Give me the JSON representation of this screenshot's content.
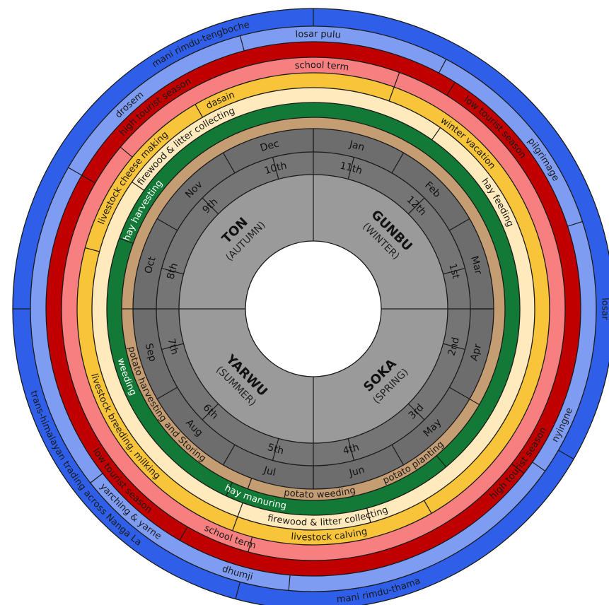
{
  "seasons": [
    {
      "name": "GUNBU",
      "sub": "(WINTER)"
    },
    {
      "name": "SOKA",
      "sub": "(SPRING)"
    },
    {
      "name": "YARWU",
      "sub": "(SUMMER)"
    },
    {
      "name": "TON",
      "sub": "(AUTUMN)"
    }
  ],
  "periods": [
    "1st",
    "2nd",
    "3rd",
    "4th",
    "5th",
    "6th",
    "7th",
    "8th",
    "9th",
    "10th",
    "11th",
    "12th"
  ],
  "months": [
    "Jan",
    "Feb",
    "Mar",
    "Apr",
    "May",
    "Jun",
    "Jul",
    "Aug",
    "Sep",
    "Oct",
    "Nov",
    "Dec"
  ],
  "rings": {
    "tan": [
      "potato planting",
      "potato weeding",
      "potato harvesting and Storing"
    ],
    "green": [
      "weeding",
      "hay manuring",
      "hay harvesting"
    ],
    "cream": [
      "hay feeding",
      "firewood & litter collecting",
      "firewood & litter collecting"
    ],
    "yellow": [
      "winter vacation",
      "livestock calving",
      "livestock breeding, milking",
      "livestock cheese making",
      "dasain"
    ],
    "pink": [
      "school term",
      "school term"
    ],
    "red": [
      "low tourist season",
      "high tourist season",
      "low tourist season",
      "high tourist season"
    ],
    "lightblue": [
      "losar pulu",
      "pilgrimage",
      "nyingne",
      "dhumji",
      "yarching & yarne",
      "drosem"
    ],
    "blue": [
      "losar",
      "mani rimdu-thama",
      "trans-himalayan trading across Nanga La",
      "mani rimdu-tengboche"
    ]
  },
  "colors": {
    "blue": "#2f5fe8",
    "lightblue": "#7e9cf2",
    "red": "#c00000",
    "pink": "#f77f80",
    "yellow": "#f8c43a",
    "cream": "#feeabc",
    "green": "#127a36",
    "tan": "#c49d73",
    "months_band": "#6d6d6d",
    "periods_band": "#757575",
    "seasons_disc": "#9a9a9a"
  }
}
